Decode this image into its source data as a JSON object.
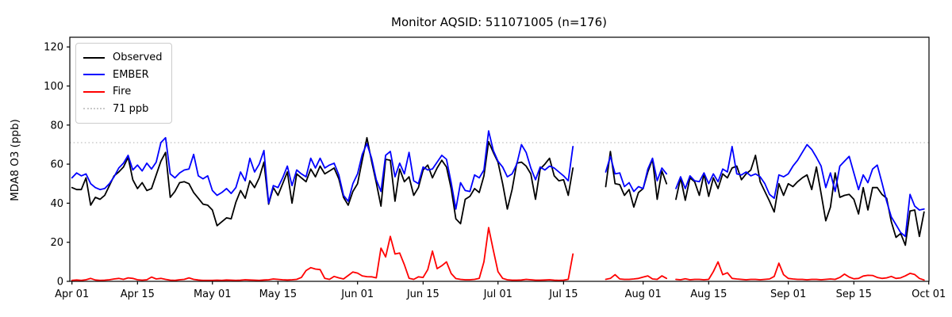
{
  "chart_data": {
    "type": "line",
    "title": "Monitor AQSID: 511071005 (n=176)",
    "xlabel": "",
    "ylabel": "MDA8 O3 (ppb)",
    "ylim": [
      0,
      125
    ],
    "y_ticks": [
      0,
      20,
      40,
      60,
      80,
      100,
      120
    ],
    "x_ticks": [
      {
        "label": "Apr 01",
        "day": 0
      },
      {
        "label": "Apr 15",
        "day": 14
      },
      {
        "label": "May 01",
        "day": 30
      },
      {
        "label": "May 15",
        "day": 44
      },
      {
        "label": "Jun 01",
        "day": 61
      },
      {
        "label": "Jun 15",
        "day": 75
      },
      {
        "label": "Jul 01",
        "day": 91
      },
      {
        "label": "Jul 15",
        "day": 105
      },
      {
        "label": "Aug 01",
        "day": 122
      },
      {
        "label": "Aug 15",
        "day": 136
      },
      {
        "label": "Sep 01",
        "day": 153
      },
      {
        "label": "Sep 15",
        "day": 167
      },
      {
        "label": "Oct 01",
        "day": 183
      }
    ],
    "x_axis_note": "daily values, day 0 = Apr 01, day 182 = Sep 30; null = missing day",
    "grid": false,
    "legend_position": "upper left",
    "threshold": {
      "label": "71 ppb",
      "value": 71,
      "color": "#c9c9c9",
      "style": "dotted"
    },
    "series": [
      {
        "name": "Observed",
        "color": "#000000",
        "values": [
          48,
          47,
          47,
          53,
          39,
          43,
          42,
          44,
          49,
          54,
          56,
          58.5,
          63.5,
          52,
          47.5,
          50.5,
          46.5,
          47.5,
          54.5,
          61.5,
          66,
          43,
          46,
          50.5,
          51,
          50,
          45.5,
          42.5,
          39.5,
          39,
          36.5,
          28.5,
          30.5,
          32.5,
          32,
          40.5,
          46.5,
          42.5,
          51.5,
          48,
          53,
          61,
          39.5,
          48,
          44,
          50,
          56,
          40,
          55,
          53,
          51,
          57.5,
          53.5,
          59,
          55,
          56.5,
          58,
          52.5,
          43,
          39,
          46,
          50,
          62,
          73.5,
          61.5,
          50.5,
          38.5,
          62.5,
          62,
          41,
          57.5,
          51,
          53.5,
          44,
          48,
          57,
          59.5,
          53,
          58,
          62,
          58.5,
          47.5,
          32,
          29.5,
          42,
          43.5,
          47.5,
          45.5,
          54,
          71.5,
          66,
          61,
          50,
          37,
          47,
          60.5,
          61,
          59,
          55,
          42,
          57.5,
          60,
          63,
          54,
          51.5,
          52,
          44,
          58,
          null,
          null,
          null,
          null,
          null,
          null,
          48.5,
          66.5,
          50,
          49.5,
          44,
          47,
          38,
          45.5,
          47.5,
          56,
          62.5,
          42,
          56.5,
          50,
          null,
          42,
          53,
          41.5,
          53,
          51,
          44,
          55,
          43.5,
          53,
          47.5,
          55,
          53,
          58,
          59,
          52,
          55,
          57,
          64.5,
          51,
          46,
          41,
          35.5,
          50,
          44,
          50,
          48.5,
          51,
          53,
          54.5,
          47,
          58.5,
          45,
          31,
          38,
          55.5,
          43,
          44,
          44.5,
          42,
          34.5,
          48,
          36.5,
          48,
          48,
          44.5,
          42.5,
          30.5,
          22.5,
          24.5,
          18.5,
          36,
          36.5,
          23,
          35.5
        ]
      },
      {
        "name": "EMBER",
        "color": "#0000ff",
        "values": [
          53,
          55.5,
          54,
          55,
          50,
          48,
          47,
          47.5,
          50,
          53.5,
          58,
          60.5,
          64.5,
          57,
          59.5,
          56.5,
          60.5,
          57.5,
          61,
          71,
          73.5,
          55,
          53,
          55.5,
          57,
          57.5,
          65,
          54,
          52.5,
          54,
          46.5,
          44,
          45.5,
          47.5,
          45,
          48,
          56,
          51.5,
          63,
          56,
          60,
          67,
          40,
          49,
          48,
          53,
          59,
          49,
          57,
          55,
          53.5,
          63,
          58,
          63,
          58,
          59.5,
          60.5,
          54.5,
          44,
          41,
          50,
          55,
          65,
          70.5,
          63,
          52,
          46,
          64.5,
          66.5,
          53.5,
          60.5,
          55,
          66,
          51.5,
          50,
          58.5,
          57,
          57.5,
          61,
          64.5,
          62.5,
          50.5,
          37,
          50.5,
          46.5,
          46,
          54.5,
          53,
          57,
          77,
          67,
          61.5,
          58.5,
          53.5,
          55,
          60,
          70,
          66,
          58,
          52,
          58.5,
          57,
          59,
          58,
          56,
          54,
          51.5,
          69,
          null,
          null,
          null,
          null,
          null,
          null,
          56,
          64,
          55,
          55.5,
          48.5,
          50.5,
          46,
          48.5,
          47.5,
          57.5,
          63,
          51.5,
          58,
          55,
          null,
          47.5,
          53.5,
          47.5,
          54,
          51.5,
          51,
          55.5,
          50,
          55,
          51,
          57.5,
          56,
          69,
          55,
          54.5,
          56,
          54,
          55,
          53.5,
          50,
          44.5,
          42.5,
          54.5,
          53.5,
          55,
          59,
          62,
          66,
          70,
          67.5,
          63.5,
          59,
          48,
          55.5,
          46,
          59,
          61.5,
          64,
          55.5,
          47,
          54.5,
          50.5,
          57.5,
          59.5,
          50.5,
          41,
          33,
          29,
          25,
          23,
          44.5,
          38.5,
          36.5,
          37
        ]
      },
      {
        "name": "Fire",
        "color": "#ff0000",
        "values": [
          0.5,
          0.7,
          0.5,
          0.8,
          1.5,
          0.7,
          0.5,
          0.6,
          0.8,
          1.2,
          1.5,
          1,
          1.8,
          1.5,
          0.8,
          0.6,
          0.8,
          2.2,
          1.2,
          1.5,
          1,
          0.6,
          0.5,
          0.8,
          1,
          1.8,
          1,
          0.7,
          0.5,
          0.5,
          0.5,
          0.6,
          0.5,
          0.7,
          0.6,
          0.5,
          0.6,
          0.8,
          0.7,
          0.6,
          0.5,
          0.7,
          0.8,
          1.2,
          1,
          0.8,
          0.7,
          0.8,
          1,
          2,
          5.5,
          7,
          6.3,
          6,
          1.5,
          1,
          2.5,
          1.8,
          1.2,
          3,
          4.8,
          4.2,
          2.8,
          2.4,
          2.3,
          1.8,
          17,
          12.5,
          23,
          14,
          14.5,
          8.5,
          1.6,
          1,
          2.3,
          2,
          6,
          15.5,
          6.5,
          8,
          10,
          4,
          1.4,
          1,
          0.8,
          0.8,
          1,
          1.5,
          10,
          27.5,
          16,
          5,
          1.5,
          0.8,
          0.6,
          0.6,
          0.7,
          1,
          0.8,
          0.6,
          0.6,
          0.7,
          0.8,
          0.6,
          0.5,
          0.6,
          1,
          14,
          null,
          null,
          null,
          null,
          null,
          null,
          1,
          1.5,
          3.4,
          1.2,
          1,
          1,
          1.2,
          1.5,
          2.2,
          2.8,
          1.2,
          1,
          2.8,
          1.5,
          null,
          1,
          0.8,
          1.3,
          0.8,
          1,
          1,
          0.8,
          1,
          5,
          10,
          3.4,
          4.4,
          1.5,
          1.2,
          1,
          0.8,
          1,
          1,
          0.8,
          1,
          1.2,
          2.5,
          9.3,
          3.4,
          1.5,
          1.2,
          1,
          1,
          0.8,
          1,
          1,
          0.8,
          1,
          1.2,
          1,
          2,
          3.7,
          2.2,
          1.3,
          1.5,
          2.7,
          3.1,
          3,
          2,
          1.5,
          1.8,
          2.5,
          1.5,
          1.8,
          2.8,
          4.1,
          3.5,
          1.5,
          0.7
        ]
      }
    ]
  },
  "legend": {
    "observed_label": "Observed",
    "ember_label": "EMBER",
    "fire_label": "Fire",
    "threshold_label": "71 ppb"
  }
}
